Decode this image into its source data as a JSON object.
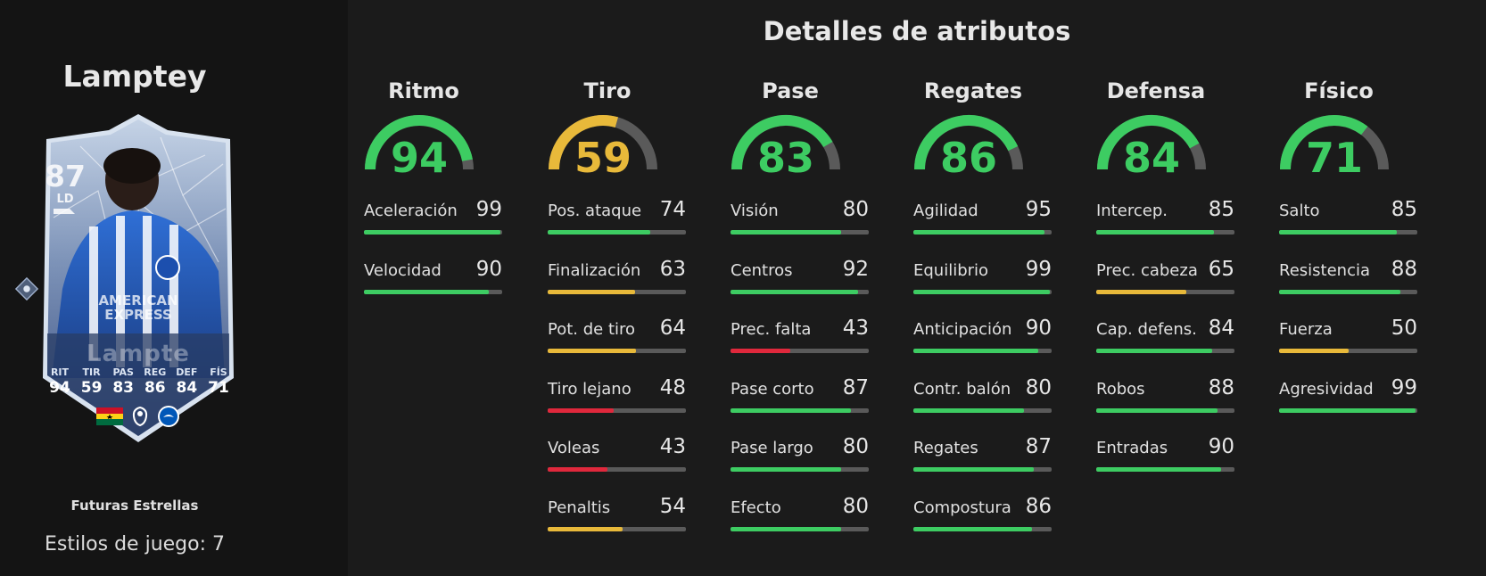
{
  "player": {
    "name": "Lamptey",
    "card": {
      "rating": "87",
      "position": "LD",
      "name_on_card": "Lampte",
      "stats": [
        {
          "label": "RIT",
          "value": "94"
        },
        {
          "label": "TIR",
          "value": "59"
        },
        {
          "label": "PAS",
          "value": "83"
        },
        {
          "label": "REG",
          "value": "86"
        },
        {
          "label": "DEF",
          "value": "84"
        },
        {
          "label": "FÍS",
          "value": "71"
        }
      ],
      "sponsor_text": [
        "AMERICAN",
        "EXPRESS"
      ]
    },
    "program": "Futuras Estrellas",
    "playstyles": "Estilos de juego: 7"
  },
  "title": "Detalles de atributos",
  "colors": {
    "high": "#3dcc62",
    "mid": "#e8b93a",
    "low": "#e0283c",
    "track": "#5a5a5a"
  },
  "categories": [
    {
      "name": "Ritmo",
      "value": "94",
      "attributes": [
        {
          "label": "Aceleración",
          "value": "99"
        },
        {
          "label": "Velocidad",
          "value": "90"
        }
      ]
    },
    {
      "name": "Tiro",
      "value": "59",
      "attributes": [
        {
          "label": "Pos. ataque",
          "value": "74"
        },
        {
          "label": "Finalización",
          "value": "63"
        },
        {
          "label": "Pot. de tiro",
          "value": "64"
        },
        {
          "label": "Tiro lejano",
          "value": "48"
        },
        {
          "label": "Voleas",
          "value": "43"
        },
        {
          "label": "Penaltis",
          "value": "54"
        }
      ]
    },
    {
      "name": "Pase",
      "value": "83",
      "attributes": [
        {
          "label": "Visión",
          "value": "80"
        },
        {
          "label": "Centros",
          "value": "92"
        },
        {
          "label": "Prec. falta",
          "value": "43"
        },
        {
          "label": "Pase corto",
          "value": "87"
        },
        {
          "label": "Pase largo",
          "value": "80"
        },
        {
          "label": "Efecto",
          "value": "80"
        }
      ]
    },
    {
      "name": "Regates",
      "value": "86",
      "attributes": [
        {
          "label": "Agilidad",
          "value": "95"
        },
        {
          "label": "Equilibrio",
          "value": "99"
        },
        {
          "label": "Anticipación",
          "value": "90"
        },
        {
          "label": "Contr. balón",
          "value": "80"
        },
        {
          "label": "Regates",
          "value": "87"
        },
        {
          "label": "Compostura",
          "value": "86"
        }
      ]
    },
    {
      "name": "Defensa",
      "value": "84",
      "attributes": [
        {
          "label": "Intercep.",
          "value": "85"
        },
        {
          "label": "Prec. cabeza",
          "value": "65"
        },
        {
          "label": "Cap. defens.",
          "value": "84"
        },
        {
          "label": "Robos",
          "value": "88"
        },
        {
          "label": "Entradas",
          "value": "90"
        }
      ]
    },
    {
      "name": "Físico",
      "value": "71",
      "attributes": [
        {
          "label": "Salto",
          "value": "85"
        },
        {
          "label": "Resistencia",
          "value": "88"
        },
        {
          "label": "Fuerza",
          "value": "50"
        },
        {
          "label": "Agresividad",
          "value": "99"
        }
      ]
    }
  ]
}
